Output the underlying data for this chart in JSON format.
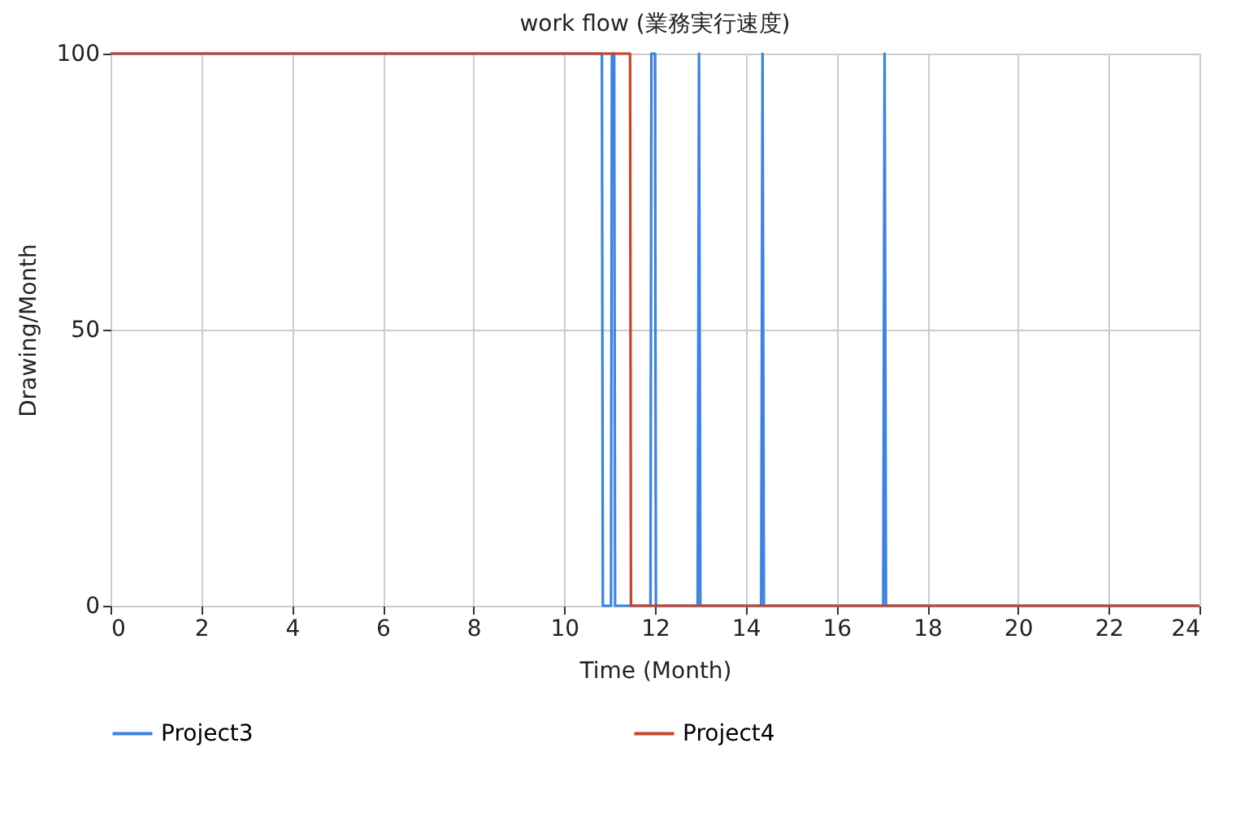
{
  "chart_data": {
    "type": "line",
    "title": "work flow (業務実行速度)",
    "xlabel": "Time (Month)",
    "ylabel": "Drawing/Month",
    "series": [
      {
        "name": "Project3",
        "color": "#3b82e6",
        "x": [
          0,
          10.83,
          10.85,
          11.03,
          11.05,
          11.1,
          11.12,
          11.9,
          11.92,
          12.0,
          12.02,
          12.94,
          12.97,
          13.0,
          14.34,
          14.37,
          14.4,
          17.03,
          17.06,
          17.09,
          24
        ],
        "values": [
          100,
          100,
          0,
          0,
          100,
          100,
          0,
          0,
          100,
          100,
          0,
          0,
          100,
          0,
          0,
          100,
          0,
          0,
          100,
          0,
          0
        ]
      },
      {
        "name": "Project4",
        "color": "#c8452a",
        "x": [
          0,
          11.45,
          11.47,
          24
        ],
        "values": [
          100,
          100,
          0,
          0
        ]
      }
    ],
    "xlim": [
      0,
      24
    ],
    "xticks": [
      0,
      2,
      4,
      6,
      8,
      10,
      12,
      14,
      16,
      18,
      20,
      22,
      24
    ],
    "ylim": [
      0,
      100
    ],
    "yticks": [
      0,
      50,
      100
    ],
    "grid": true,
    "legend": "bottom",
    "line_style": "solid",
    "marker": "none"
  }
}
